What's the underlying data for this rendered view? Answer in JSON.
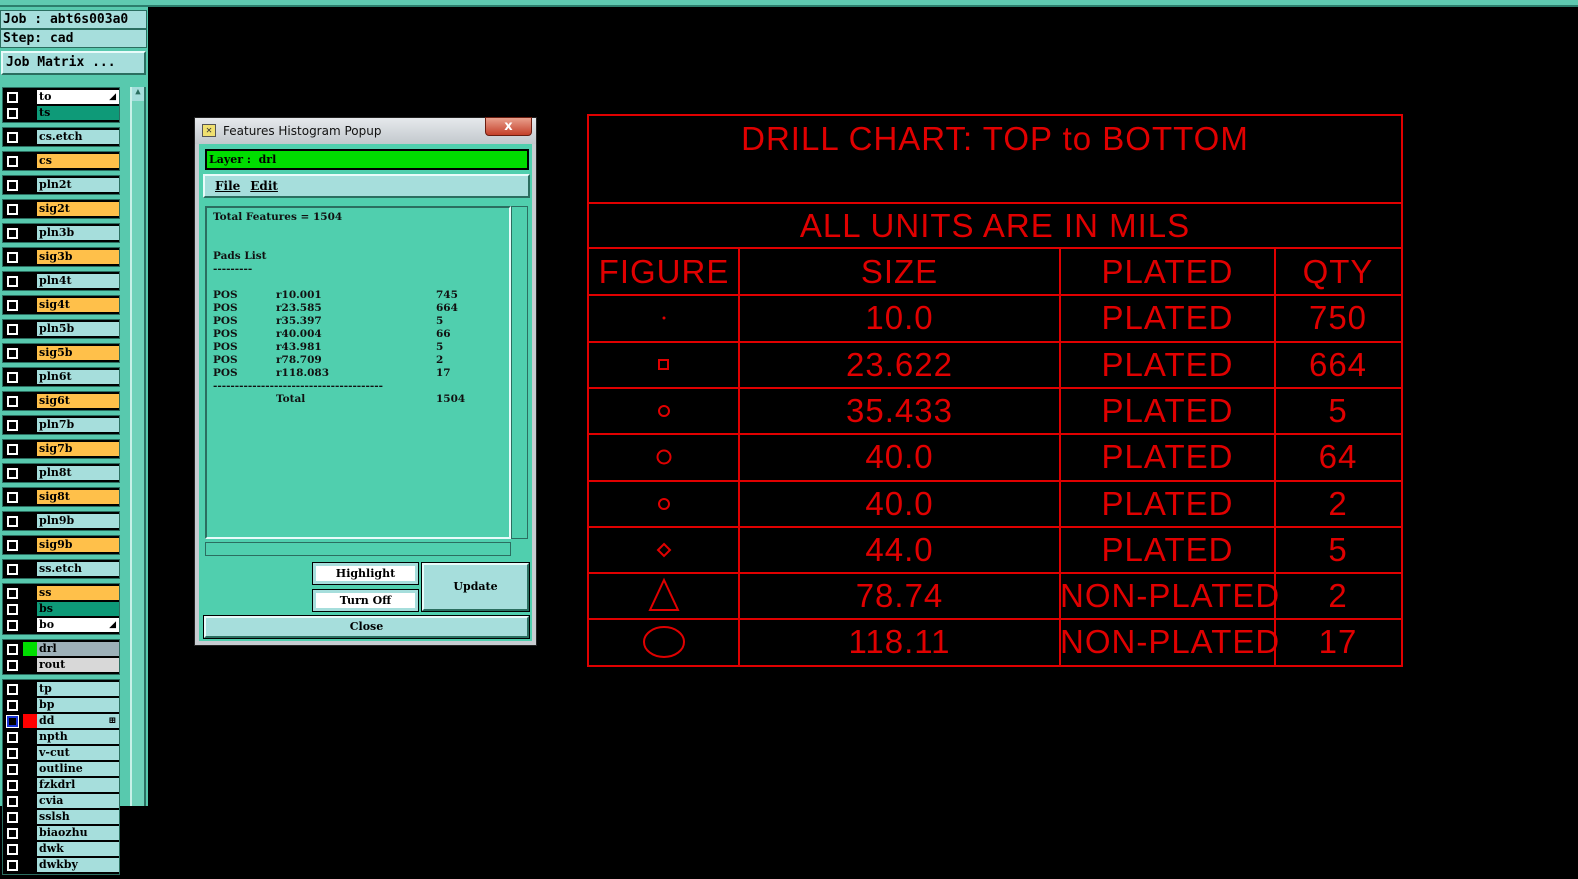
{
  "job": {
    "job_label": "Job : abt6s003a0",
    "step_label": "Step: cad",
    "matrix_button": "Job Matrix ..."
  },
  "layers": {
    "g0": [
      {
        "name": "to",
        "color": "white",
        "marker": "arrow"
      },
      {
        "name": "ts",
        "color": "green"
      }
    ],
    "g1": [
      {
        "name": "cs.etch"
      }
    ],
    "g2": [
      {
        "name": "cs"
      }
    ],
    "g3": [
      {
        "name": "pln2t"
      }
    ],
    "g4": [
      {
        "name": "sig2t"
      }
    ],
    "g5": [
      {
        "name": "pln3b"
      }
    ],
    "g6": [
      {
        "name": "sig3b"
      }
    ],
    "g7": [
      {
        "name": "pln4t"
      }
    ],
    "g8": [
      {
        "name": "sig4t"
      }
    ],
    "g9": [
      {
        "name": "pln5b"
      }
    ],
    "g10": [
      {
        "name": "sig5b"
      }
    ],
    "g11": [
      {
        "name": "pln6t"
      }
    ],
    "g12": [
      {
        "name": "sig6t"
      }
    ],
    "g13": [
      {
        "name": "pln7b"
      }
    ],
    "g14": [
      {
        "name": "sig7b"
      }
    ],
    "g15": [
      {
        "name": "pln8t"
      }
    ],
    "g16": [
      {
        "name": "sig8t"
      }
    ],
    "g17": [
      {
        "name": "pln9b"
      }
    ],
    "g18": [
      {
        "name": "sig9b"
      }
    ],
    "g19": [
      {
        "name": "ss.etch"
      }
    ],
    "g20": [
      {
        "name": "ss"
      },
      {
        "name": "bs"
      },
      {
        "name": "bo",
        "marker": "arrow"
      }
    ],
    "g21": [
      {
        "name": "drl",
        "swatch": "#00dd00"
      },
      {
        "name": "rout"
      }
    ],
    "g22": [
      {
        "name": "tp"
      },
      {
        "name": "bp"
      },
      {
        "name": "dd",
        "swatch": "#ff0000",
        "selected": true
      },
      {
        "name": "npth"
      },
      {
        "name": "v-cut"
      },
      {
        "name": "outline"
      },
      {
        "name": "fzkdrl"
      },
      {
        "name": "cvia"
      },
      {
        "name": "sslsh"
      },
      {
        "name": "biaozhu"
      },
      {
        "name": "dwk"
      },
      {
        "name": "dwkby"
      }
    ]
  },
  "popup": {
    "title": "Features Histogram Popup",
    "close": "x",
    "layer_label": "Layer :  drl",
    "menu": {
      "file": "File",
      "edit": "Edit"
    },
    "total_features": "Total Features = 1504",
    "pads_heading": "Pads List",
    "pads_rule": "---------",
    "pads": [
      [
        "POS",
        "r10.001",
        "745"
      ],
      [
        "POS",
        "r23.585",
        "664"
      ],
      [
        "POS",
        "r35.397",
        "5"
      ],
      [
        "POS",
        "r40.004",
        "66"
      ],
      [
        "POS",
        "r43.981",
        "5"
      ],
      [
        "POS",
        "r78.709",
        "2"
      ],
      [
        "POS",
        "r118.083",
        "17"
      ]
    ],
    "total_rule": "---------------------------------------",
    "total_label": "Total",
    "total_value": "1504",
    "buttons": {
      "highlight": "Highlight",
      "turn_off": "Turn Off",
      "update": "Update",
      "close": "Close"
    }
  },
  "drill_chart": {
    "title": "DRILL CHART: TOP to BOTTOM",
    "units": "ALL UNITS ARE IN MILS",
    "headers": [
      "FIGURE",
      "SIZE",
      "PLATED",
      "QTY"
    ],
    "rows": [
      {
        "figure": "dot",
        "size": "10.0",
        "plated": "PLATED",
        "qty": "750"
      },
      {
        "figure": "square",
        "size": "23.622",
        "plated": "PLATED",
        "qty": "664"
      },
      {
        "figure": "small-circle",
        "size": "35.433",
        "plated": "PLATED",
        "qty": "5"
      },
      {
        "figure": "circle",
        "size": "40.0",
        "plated": "PLATED",
        "qty": "64"
      },
      {
        "figure": "circle-small",
        "size": "40.0",
        "plated": "PLATED",
        "qty": "2"
      },
      {
        "figure": "diamond",
        "size": "44.0",
        "plated": "PLATED",
        "qty": "5"
      },
      {
        "figure": "triangle",
        "size": "78.74",
        "plated": "NON-PLATED",
        "qty": "2"
      },
      {
        "figure": "ellipse",
        "size": "118.11",
        "plated": "NON-PLATED",
        "qty": "17"
      }
    ],
    "color": "#e00000"
  }
}
